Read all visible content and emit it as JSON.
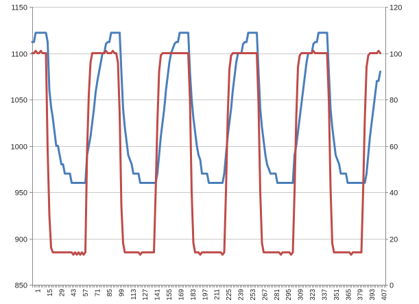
{
  "chart_data": {
    "type": "line",
    "title": "",
    "xlabel": "",
    "ylabel_left": "",
    "ylabel_right": "",
    "grid": true,
    "legend": "none",
    "x_range": [
      1,
      207
    ],
    "x_tick_labels": [
      "1",
      "15",
      "29",
      "43",
      "57",
      "71",
      "85",
      "99",
      "113",
      "127",
      "141",
      "155",
      "169",
      "183",
      "197",
      "211",
      "225",
      "239",
      "253",
      "267",
      "281",
      "295",
      "309",
      "323",
      "337",
      "351",
      "365",
      "379",
      "393",
      "407"
    ],
    "y_left": {
      "min": 850,
      "max": 1150,
      "ticks": [
        850,
        900,
        950,
        1000,
        1050,
        1100,
        1150
      ]
    },
    "y_right": {
      "min": 0,
      "max": 120,
      "ticks": [
        0,
        20,
        40,
        60,
        80,
        100,
        120
      ]
    },
    "series": [
      {
        "axis": "left",
        "color": "#4a7ebb",
        "points": [
          [
            1,
            1112
          ],
          [
            2,
            1112
          ],
          [
            3,
            1122
          ],
          [
            9,
            1122
          ],
          [
            10,
            1112
          ],
          [
            11,
            1060
          ],
          [
            12,
            1042
          ],
          [
            13,
            1030
          ],
          [
            14,
            1015
          ],
          [
            15,
            1000
          ],
          [
            16,
            1000
          ],
          [
            17,
            990
          ],
          [
            18,
            980
          ],
          [
            19,
            980
          ],
          [
            20,
            970
          ],
          [
            23,
            970
          ],
          [
            24,
            960
          ],
          [
            32,
            960
          ],
          [
            33,
            990
          ],
          [
            34,
            1000
          ],
          [
            35,
            1010
          ],
          [
            36,
            1025
          ],
          [
            37,
            1040
          ],
          [
            38,
            1058
          ],
          [
            39,
            1070
          ],
          [
            40,
            1080
          ],
          [
            41,
            1090
          ],
          [
            42,
            1100
          ],
          [
            43,
            1100
          ],
          [
            44,
            1110
          ],
          [
            45,
            1112
          ],
          [
            46,
            1112
          ],
          [
            47,
            1122
          ],
          [
            52,
            1122
          ],
          [
            53,
            1080
          ],
          [
            54,
            1040
          ],
          [
            55,
            1020
          ],
          [
            56,
            1005
          ],
          [
            57,
            990
          ],
          [
            58,
            985
          ],
          [
            59,
            980
          ],
          [
            60,
            970
          ],
          [
            63,
            970
          ],
          [
            64,
            960
          ],
          [
            73,
            960
          ],
          [
            74,
            970
          ],
          [
            75,
            990
          ],
          [
            76,
            1010
          ],
          [
            77,
            1025
          ],
          [
            78,
            1040
          ],
          [
            79,
            1060
          ],
          [
            80,
            1075
          ],
          [
            81,
            1090
          ],
          [
            82,
            1100
          ],
          [
            83,
            1105
          ],
          [
            84,
            1110
          ],
          [
            85,
            1112
          ],
          [
            86,
            1112
          ],
          [
            87,
            1122
          ],
          [
            92,
            1122
          ],
          [
            93,
            1080
          ],
          [
            94,
            1050
          ],
          [
            95,
            1030
          ],
          [
            96,
            1015
          ],
          [
            97,
            1000
          ],
          [
            98,
            990
          ],
          [
            99,
            985
          ],
          [
            100,
            970
          ],
          [
            103,
            970
          ],
          [
            104,
            960
          ],
          [
            112,
            960
          ],
          [
            113,
            970
          ],
          [
            114,
            990
          ],
          [
            115,
            1010
          ],
          [
            116,
            1025
          ],
          [
            117,
            1040
          ],
          [
            118,
            1060
          ],
          [
            119,
            1075
          ],
          [
            120,
            1090
          ],
          [
            121,
            1100
          ],
          [
            123,
            1100
          ],
          [
            124,
            1110
          ],
          [
            125,
            1112
          ],
          [
            126,
            1112
          ],
          [
            127,
            1122
          ],
          [
            132,
            1122
          ],
          [
            133,
            1080
          ],
          [
            134,
            1040
          ],
          [
            135,
            1020
          ],
          [
            136,
            1005
          ],
          [
            137,
            990
          ],
          [
            138,
            980
          ],
          [
            139,
            975
          ],
          [
            140,
            970
          ],
          [
            143,
            970
          ],
          [
            144,
            960
          ],
          [
            153,
            960
          ],
          [
            154,
            990
          ],
          [
            155,
            1000
          ],
          [
            156,
            1015
          ],
          [
            157,
            1030
          ],
          [
            158,
            1045
          ],
          [
            159,
            1060
          ],
          [
            160,
            1075
          ],
          [
            161,
            1090
          ],
          [
            162,
            1100
          ],
          [
            164,
            1100
          ],
          [
            165,
            1110
          ],
          [
            166,
            1112
          ],
          [
            167,
            1112
          ],
          [
            168,
            1122
          ],
          [
            173,
            1122
          ],
          [
            174,
            1080
          ],
          [
            175,
            1040
          ],
          [
            176,
            1020
          ],
          [
            177,
            1005
          ],
          [
            178,
            990
          ],
          [
            179,
            985
          ],
          [
            180,
            980
          ],
          [
            181,
            970
          ],
          [
            184,
            970
          ],
          [
            185,
            960
          ],
          [
            195,
            960
          ],
          [
            196,
            970
          ],
          [
            197,
            990
          ],
          [
            198,
            1010
          ],
          [
            199,
            1025
          ],
          [
            200,
            1040
          ],
          [
            201,
            1055
          ],
          [
            202,
            1070
          ],
          [
            203,
            1070
          ],
          [
            204,
            1080
          ]
        ]
      },
      {
        "axis": "right",
        "color": "#be4b48",
        "points": [
          [
            1,
            100
          ],
          [
            2,
            100
          ],
          [
            3,
            101
          ],
          [
            4,
            100
          ],
          [
            5,
            100
          ],
          [
            6,
            101
          ],
          [
            7,
            100
          ],
          [
            9,
            100
          ],
          [
            10,
            58
          ],
          [
            11,
            30
          ],
          [
            12,
            16
          ],
          [
            13,
            14
          ],
          [
            24,
            14
          ],
          [
            25,
            13
          ],
          [
            26,
            14
          ],
          [
            27,
            13
          ],
          [
            28,
            14
          ],
          [
            29,
            13
          ],
          [
            30,
            14
          ],
          [
            31,
            13
          ],
          [
            32,
            14
          ],
          [
            33,
            58
          ],
          [
            34,
            82
          ],
          [
            35,
            96
          ],
          [
            36,
            100
          ],
          [
            43,
            100
          ],
          [
            44,
            101
          ],
          [
            45,
            100
          ],
          [
            47,
            100
          ],
          [
            48,
            101
          ],
          [
            49,
            100
          ],
          [
            50,
            100
          ],
          [
            51,
            96
          ],
          [
            52,
            74
          ],
          [
            53,
            34
          ],
          [
            54,
            18
          ],
          [
            55,
            14
          ],
          [
            63,
            14
          ],
          [
            64,
            13
          ],
          [
            65,
            14
          ],
          [
            72,
            14
          ],
          [
            73,
            40
          ],
          [
            74,
            70
          ],
          [
            75,
            92
          ],
          [
            76,
            99
          ],
          [
            77,
            100
          ],
          [
            92,
            100
          ],
          [
            93,
            80
          ],
          [
            94,
            40
          ],
          [
            95,
            18
          ],
          [
            96,
            14
          ],
          [
            98,
            14
          ],
          [
            99,
            13
          ],
          [
            100,
            14
          ],
          [
            111,
            14
          ],
          [
            112,
            13
          ],
          [
            113,
            14
          ],
          [
            114,
            40
          ],
          [
            115,
            72
          ],
          [
            116,
            93
          ],
          [
            117,
            99
          ],
          [
            118,
            100
          ],
          [
            132,
            100
          ],
          [
            133,
            78
          ],
          [
            134,
            40
          ],
          [
            135,
            18
          ],
          [
            136,
            14
          ],
          [
            145,
            14
          ],
          [
            146,
            13
          ],
          [
            147,
            14
          ],
          [
            151,
            14
          ],
          [
            152,
            13
          ],
          [
            153,
            14
          ],
          [
            154,
            40
          ],
          [
            155,
            72
          ],
          [
            156,
            94
          ],
          [
            157,
            99
          ],
          [
            158,
            100
          ],
          [
            164,
            100
          ],
          [
            165,
            101
          ],
          [
            166,
            100
          ],
          [
            173,
            100
          ],
          [
            174,
            80
          ],
          [
            175,
            42
          ],
          [
            176,
            18
          ],
          [
            177,
            14
          ],
          [
            186,
            14
          ],
          [
            187,
            13
          ],
          [
            188,
            14
          ],
          [
            193,
            14
          ],
          [
            194,
            40
          ],
          [
            195,
            72
          ],
          [
            196,
            94
          ],
          [
            197,
            99
          ],
          [
            198,
            100
          ],
          [
            202,
            100
          ],
          [
            203,
            101
          ],
          [
            204,
            100
          ]
        ]
      }
    ]
  }
}
